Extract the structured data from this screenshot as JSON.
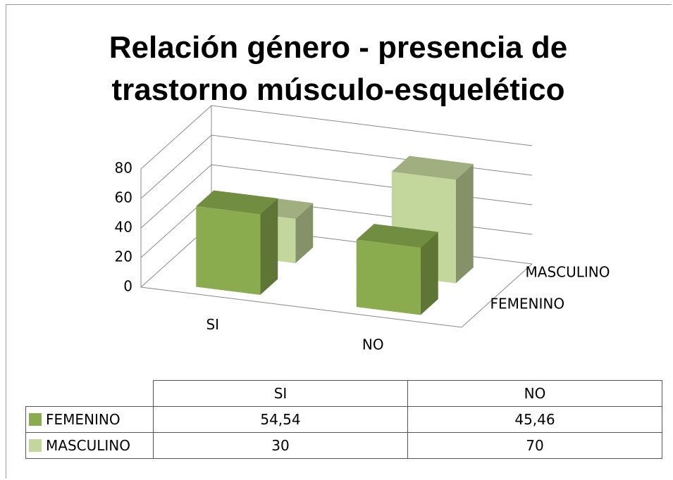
{
  "chart_data": {
    "type": "bar3d",
    "title": "Relación género - presencia de trastorno músculo-esquelético",
    "categories": [
      "SI",
      "NO"
    ],
    "series": [
      {
        "name": "FEMENINO",
        "color": "#8aac4e",
        "values": [
          54.54,
          45.46
        ],
        "value_labels": [
          "54,54",
          "45,46"
        ]
      },
      {
        "name": "MASCULINO",
        "color": "#c3d69b",
        "values": [
          30,
          70
        ]
      }
    ],
    "ylim": [
      0,
      80
    ],
    "yticks": [
      0,
      20,
      40,
      60,
      80
    ],
    "grid": true
  }
}
